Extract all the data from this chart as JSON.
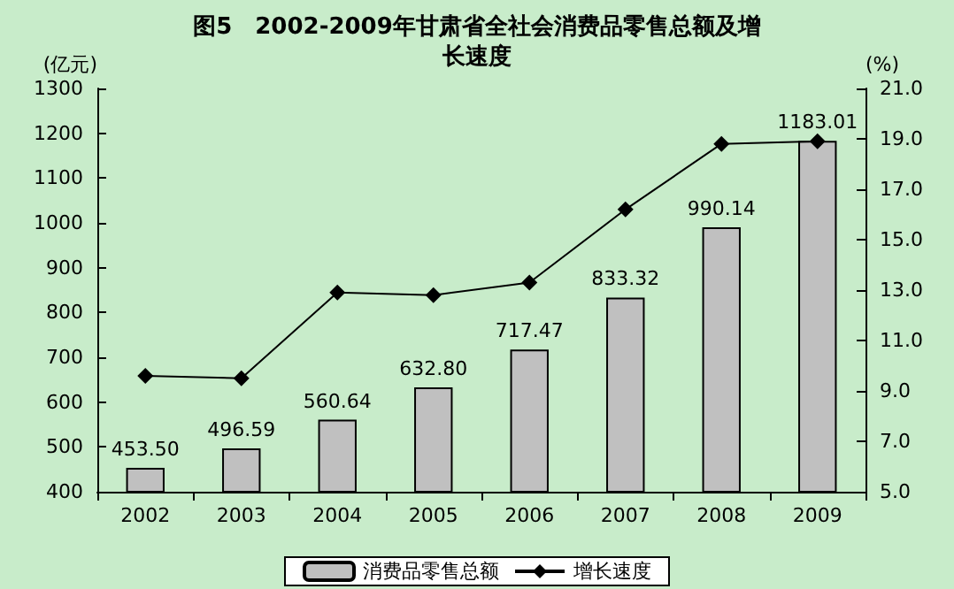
{
  "chart_data": {
    "type": "bar",
    "title": "图5　2002-2009年甘肃省全社会消费品零售总额及增长速度",
    "ylabel": "(亿元)",
    "y2label": "(%)",
    "categories": [
      "2002",
      "2003",
      "2004",
      "2005",
      "2006",
      "2007",
      "2008",
      "2009"
    ],
    "series": [
      {
        "name": "消费品零售总额",
        "color": "#c0c0c0",
        "values": [
          453.5,
          496.59,
          560.64,
          632.8,
          717.47,
          833.32,
          990.14,
          1183.01
        ],
        "value_labels": [
          "453.50",
          "496.59",
          "560.64",
          "632.80",
          "717.47",
          "833.32",
          "990.14",
          "1183.01"
        ]
      },
      {
        "name": "增长速度",
        "type": "line",
        "axis": "y2",
        "color": "#000000",
        "values": [
          9.6,
          9.5,
          12.9,
          12.8,
          13.3,
          16.2,
          18.8,
          18.9
        ]
      }
    ],
    "ylim": [
      400,
      1300
    ],
    "yticks": [
      400,
      500,
      600,
      700,
      800,
      900,
      1000,
      1100,
      1200,
      1300
    ],
    "y2lim": [
      5,
      21
    ],
    "y2ticks": [
      {
        "value": 5,
        "label": "5.0"
      },
      {
        "value": 7,
        "label": "7.0"
      },
      {
        "value": 9,
        "label": "9.0"
      },
      {
        "value": 11,
        "label": "11.0"
      },
      {
        "value": 13,
        "label": "13.0"
      },
      {
        "value": 15,
        "label": "15.0"
      },
      {
        "value": 17,
        "label": "17.0"
      },
      {
        "value": 19,
        "label": "19.0"
      },
      {
        "value": 21,
        "label": "21.0"
      }
    ],
    "legend": "bottom",
    "marker": "diamond",
    "grid": false
  }
}
